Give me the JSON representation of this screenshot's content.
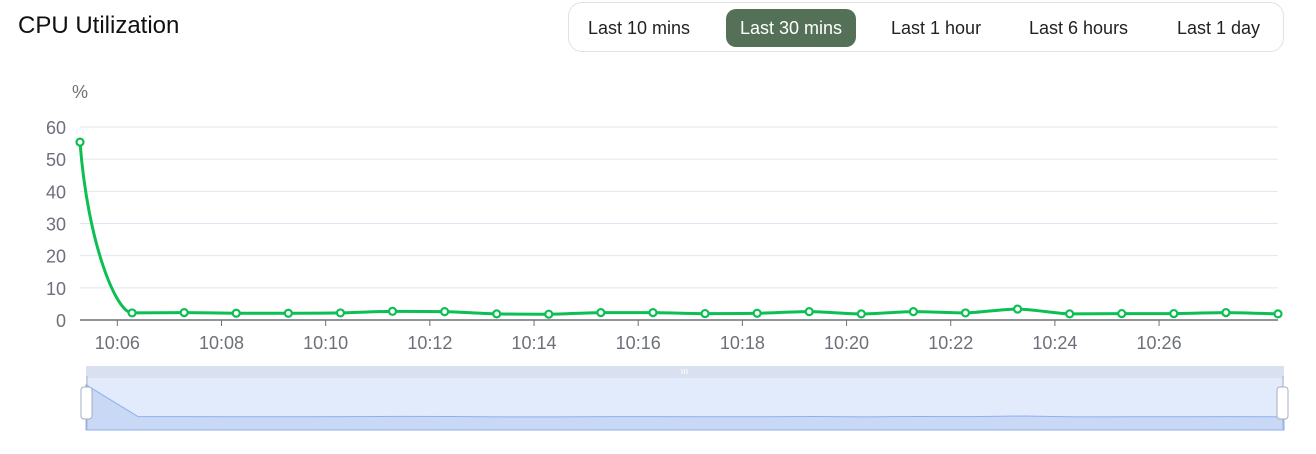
{
  "title": "CPU Utilization",
  "range_buttons": [
    {
      "label": "Last 10 mins",
      "active": false
    },
    {
      "label": "Last 30 mins",
      "active": true
    },
    {
      "label": "Last 1 hour",
      "active": false
    },
    {
      "label": "Last 6 hours",
      "active": false
    },
    {
      "label": "Last 1 day",
      "active": false
    }
  ],
  "colors": {
    "line": "#0cbf52",
    "active_button": "#547157",
    "zoom_fill": "#e2ebfb",
    "zoom_area": "#c9d8f5"
  },
  "chart_data": {
    "type": "line",
    "ylabel": "%",
    "ylim": [
      0,
      60
    ],
    "yticks": [
      "0",
      "10",
      "20",
      "30",
      "40",
      "50",
      "60"
    ],
    "xticks": [
      "10:06",
      "10:08",
      "10:10",
      "10:12",
      "10:14",
      "10:16",
      "10:18",
      "10:20",
      "10:22",
      "10:24",
      "10:26"
    ],
    "x": [
      "10:05:17",
      "10:06:17",
      "10:07:17",
      "10:08:17",
      "10:09:17",
      "10:10:17",
      "10:11:17",
      "10:12:17",
      "10:13:17",
      "10:14:17",
      "10:15:17",
      "10:16:17",
      "10:17:17",
      "10:18:17",
      "10:19:17",
      "10:20:17",
      "10:21:17",
      "10:22:17",
      "10:23:17",
      "10:24:17",
      "10:25:17",
      "10:26:17",
      "10:27:17",
      "10:28:17"
    ],
    "values": [
      55.3,
      2.2,
      2.3,
      2.1,
      2.1,
      2.2,
      2.7,
      2.6,
      1.9,
      1.8,
      2.3,
      2.3,
      2.0,
      2.1,
      2.6,
      1.9,
      2.6,
      2.2,
      3.4,
      1.9,
      2.0,
      2.0,
      2.3,
      1.9
    ],
    "grid": true,
    "smooth": true,
    "data_zoom": {
      "start_percent": 0,
      "end_percent": 100
    }
  }
}
